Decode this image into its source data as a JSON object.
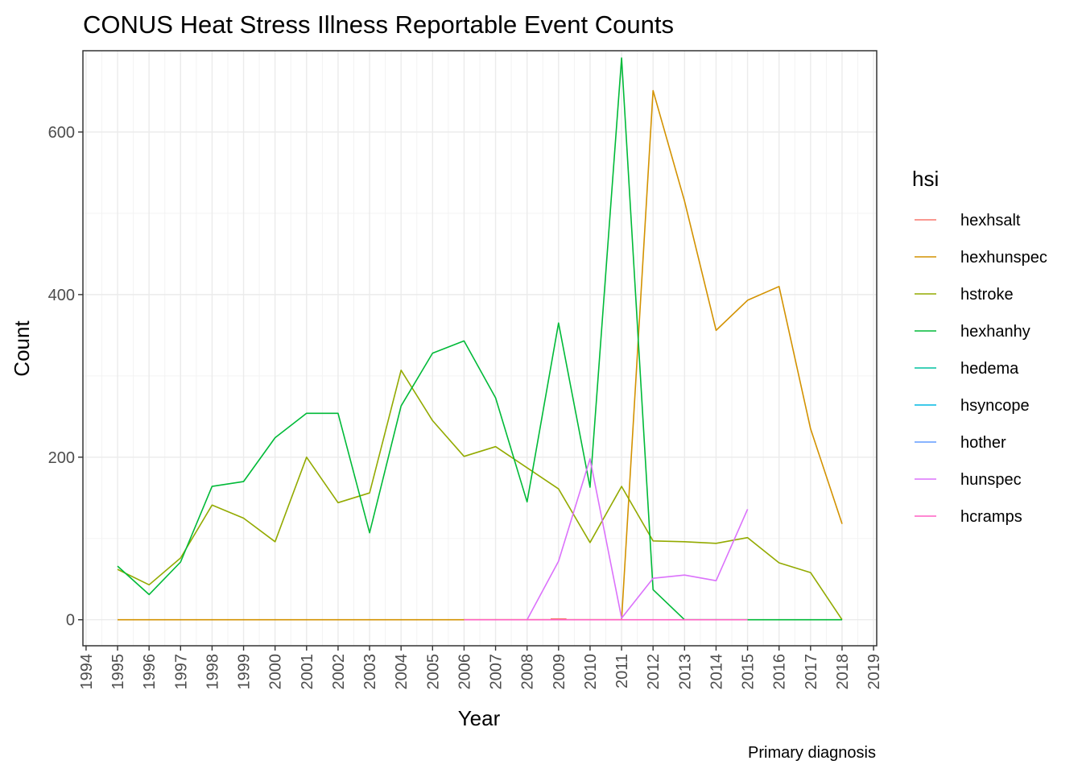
{
  "chart_data": {
    "type": "line",
    "title": "CONUS Heat Stress Illness Reportable Event Counts",
    "xlabel": "Year",
    "ylabel": "Count",
    "caption": "Primary diagnosis",
    "legend_title": "hsi",
    "legend_position": "right",
    "grid": true,
    "xlim": [
      1993.9,
      2019.1
    ],
    "ylim": [
      -32,
      700
    ],
    "x_ticks": [
      1994,
      1995,
      1996,
      1997,
      1998,
      1999,
      2000,
      2001,
      2002,
      2003,
      2004,
      2005,
      2006,
      2007,
      2008,
      2009,
      2010,
      2011,
      2012,
      2013,
      2014,
      2015,
      2016,
      2017,
      2018,
      2019
    ],
    "y_ticks": [
      0,
      200,
      400,
      600
    ],
    "series": [
      {
        "name": "hexhsalt",
        "color": "#F8766D",
        "x": [
          2009
        ],
        "y": [
          1
        ]
      },
      {
        "name": "hexhunspec",
        "color": "#D39200",
        "x": [
          1995,
          1996,
          1997,
          1998,
          1999,
          2000,
          2001,
          2002,
          2003,
          2004,
          2005,
          2006,
          2007,
          2008,
          2009,
          2010,
          2011,
          2012,
          2013,
          2014,
          2015,
          2016,
          2017,
          2018
        ],
        "y": [
          0,
          0,
          0,
          0,
          0,
          0,
          0,
          0,
          0,
          0,
          0,
          0,
          0,
          0,
          0,
          0,
          0,
          651,
          515,
          356,
          393,
          410,
          235,
          118
        ]
      },
      {
        "name": "hstroke",
        "color": "#93AA00",
        "x": [
          1995,
          1996,
          1997,
          1998,
          1999,
          2000,
          2001,
          2002,
          2003,
          2004,
          2005,
          2006,
          2007,
          2008,
          2009,
          2010,
          2011,
          2012,
          2013,
          2014,
          2015,
          2016,
          2017,
          2018
        ],
        "y": [
          62,
          43,
          76,
          141,
          125,
          96,
          200,
          144,
          156,
          307,
          245,
          201,
          213,
          187,
          161,
          95,
          164,
          97,
          96,
          94,
          101,
          70,
          58,
          0
        ]
      },
      {
        "name": "hexhanhy",
        "color": "#00BA38",
        "x": [
          1995,
          1996,
          1997,
          1998,
          1999,
          2000,
          2001,
          2002,
          2003,
          2004,
          2005,
          2006,
          2007,
          2008,
          2009,
          2010,
          2011,
          2012,
          2013,
          2014,
          2015,
          2016,
          2017,
          2018
        ],
        "y": [
          66,
          31,
          71,
          164,
          170,
          224,
          254,
          254,
          107,
          263,
          328,
          343,
          273,
          145,
          365,
          163,
          691,
          37,
          0,
          0,
          0,
          0,
          0,
          0
        ]
      },
      {
        "name": "hedema",
        "color": "#00C19F",
        "x": [],
        "y": []
      },
      {
        "name": "hsyncope",
        "color": "#00B9E3",
        "x": [],
        "y": []
      },
      {
        "name": "hother",
        "color": "#619CFF",
        "x": [],
        "y": []
      },
      {
        "name": "hunspec",
        "color": "#DB72FB",
        "x": [
          2008,
          2009,
          2010,
          2011,
          2012,
          2013,
          2014,
          2015
        ],
        "y": [
          0,
          72,
          198,
          2,
          51,
          55,
          48,
          136
        ]
      },
      {
        "name": "hcramps",
        "color": "#FF61C3",
        "x": [
          2006,
          2007,
          2008,
          2009,
          2010,
          2011,
          2012,
          2013,
          2014,
          2015
        ],
        "y": [
          0,
          0,
          0,
          0,
          0,
          0,
          0,
          0,
          0,
          0
        ]
      }
    ]
  }
}
